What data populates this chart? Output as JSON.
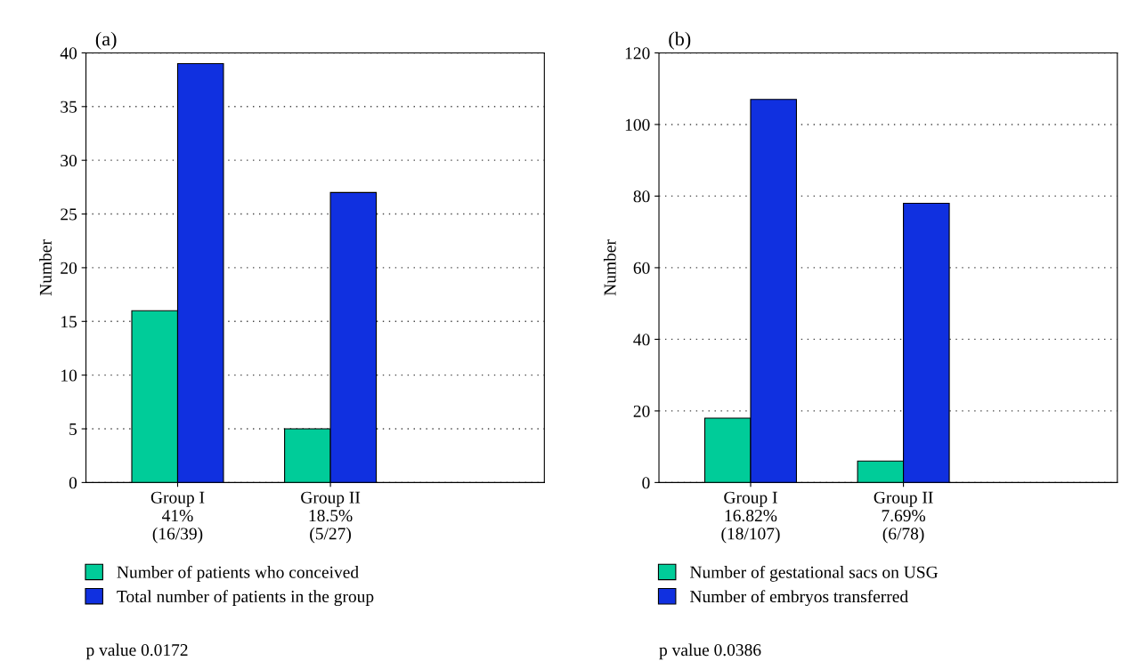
{
  "chart_data": [
    {
      "type": "bar",
      "title": "(a)",
      "ylabel": "Number",
      "categories": [
        "Group I\n41%\n(16/39)",
        "Group II\n18.5%\n(5/27)"
      ],
      "series": [
        {
          "name": "Number of patients who conceived",
          "color": "#00cc99",
          "values": [
            16,
            5
          ]
        },
        {
          "name": "Total number of patients in the group",
          "color": "#1030e0",
          "values": [
            39,
            27
          ]
        }
      ],
      "ylim": [
        0,
        40
      ],
      "yticks": [
        0,
        5,
        10,
        15,
        20,
        25,
        30,
        35,
        40
      ],
      "grid": "y",
      "legend": "bottom",
      "annotations": [
        "p value 0.0172"
      ]
    },
    {
      "type": "bar",
      "title": "(b)",
      "ylabel": "Number",
      "categories": [
        "Group I\n16.82%\n(18/107)",
        "Group II\n7.69%\n(6/78)"
      ],
      "series": [
        {
          "name": "Number of gestational sacs on USG",
          "color": "#00cc99",
          "values": [
            18,
            6
          ]
        },
        {
          "name": "Number of embryos transferred",
          "color": "#1030e0",
          "values": [
            107,
            78
          ]
        }
      ],
      "ylim": [
        0,
        120
      ],
      "yticks": [
        0,
        20,
        40,
        60,
        80,
        100,
        120
      ],
      "grid": "y",
      "legend": "bottom",
      "annotations": [
        "p value 0.0386"
      ]
    }
  ]
}
